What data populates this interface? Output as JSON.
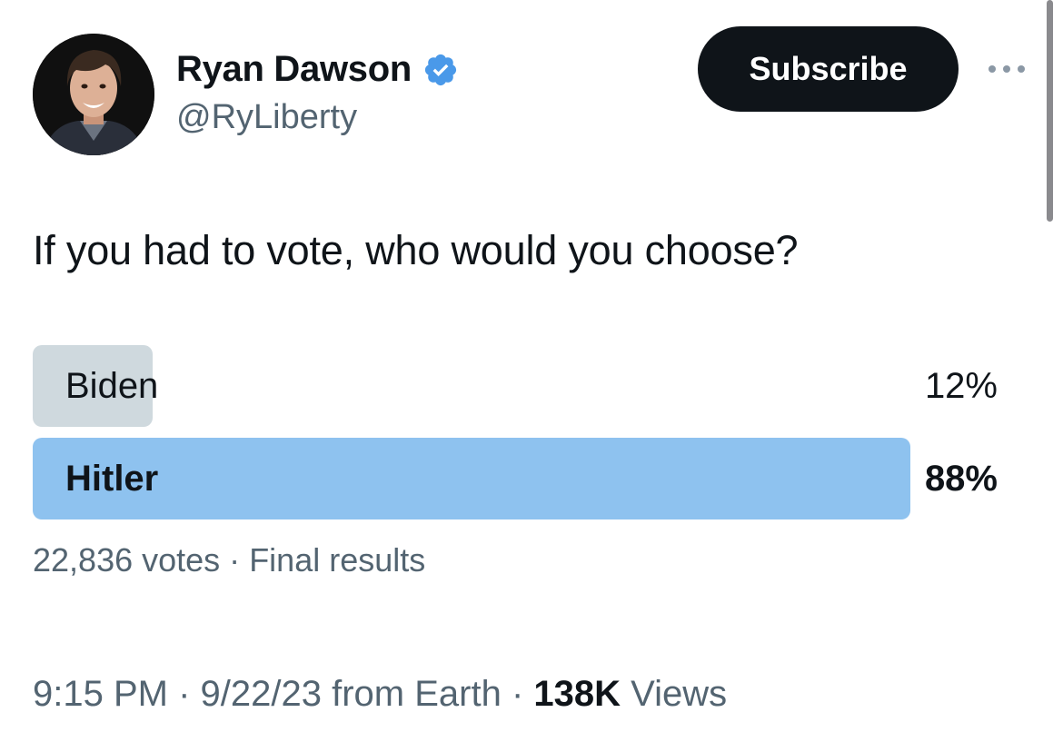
{
  "author": {
    "display_name": "Ryan Dawson",
    "handle": "@RyLiberty",
    "verified": true,
    "verified_color": "#4a99e9"
  },
  "actions": {
    "subscribe_label": "Subscribe",
    "more_icon": "more-horizontal-icon"
  },
  "tweet": {
    "text": "If you had to vote, who would you choose?"
  },
  "poll": {
    "options": [
      {
        "label": "Biden",
        "percent_label": "12%",
        "percent": 12,
        "winner": false,
        "color": "#cfd9de"
      },
      {
        "label": "Hitler",
        "percent_label": "88%",
        "percent": 88,
        "winner": true,
        "color": "#8ec2ef"
      }
    ],
    "votes": "22,836 votes",
    "separator": "·",
    "status": "Final results"
  },
  "meta": {
    "time": "9:15 PM",
    "separator": "·",
    "date_source": "9/22/23 from Earth",
    "views_count": "138K",
    "views_label": "Views"
  }
}
